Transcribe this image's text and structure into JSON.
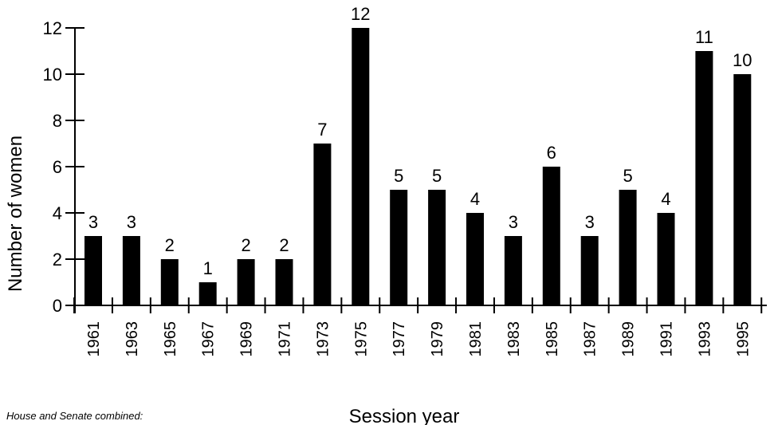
{
  "chart_data": {
    "type": "bar",
    "title": "",
    "xlabel": "Session year",
    "ylabel": "Number of women",
    "ylim": [
      0,
      12
    ],
    "yticks": [
      0,
      2,
      4,
      6,
      8,
      10,
      12
    ],
    "grid": false,
    "categories": [
      "1961",
      "1963",
      "1965",
      "1967",
      "1969",
      "1971",
      "1973",
      "1975",
      "1977",
      "1979",
      "1981",
      "1983",
      "1985",
      "1987",
      "1989",
      "1991",
      "1993",
      "1995"
    ],
    "values": [
      3,
      3,
      2,
      1,
      2,
      2,
      7,
      12,
      5,
      5,
      4,
      3,
      6,
      3,
      5,
      4,
      11,
      10
    ],
    "data_labels": true,
    "bar_color": "#000000"
  },
  "footnote": "House and Senate combined:"
}
